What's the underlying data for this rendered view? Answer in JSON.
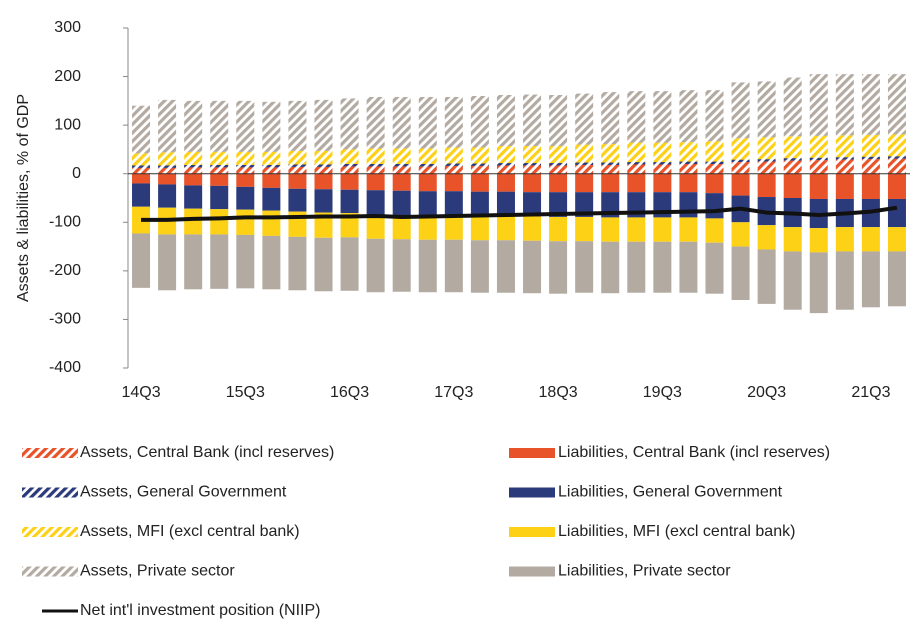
{
  "chart_data": {
    "type": "bar",
    "stacked": true,
    "y_label": "Assets & liabilities, % of GDP",
    "categories": [
      "14Q3",
      null,
      null,
      null,
      "15Q3",
      null,
      null,
      null,
      "16Q3",
      null,
      null,
      null,
      "17Q3",
      null,
      null,
      null,
      "18Q3",
      null,
      null,
      null,
      "19Q3",
      null,
      null,
      null,
      "20Q3",
      null,
      null,
      null,
      "21Q3",
      null
    ],
    "ylim": [
      -400,
      300
    ],
    "yticks": [
      -400,
      -300,
      -200,
      -100,
      0,
      100,
      200,
      300
    ],
    "series": [
      {
        "name": "Assets, Central Bank (incl reserves)",
        "color": "#e8532a",
        "pattern": "hatch",
        "values": [
          12,
          12,
          13,
          13,
          13,
          13,
          14,
          14,
          15,
          15,
          15,
          15,
          16,
          16,
          17,
          17,
          17,
          18,
          18,
          19,
          19,
          20,
          20,
          24,
          25,
          27,
          28,
          29,
          30,
          31
        ]
      },
      {
        "name": "Assets, General Government",
        "color": "#2b3a7a",
        "pattern": "hatch",
        "values": [
          5,
          5,
          5,
          5,
          5,
          5,
          5,
          5,
          5,
          5,
          5,
          5,
          5,
          5,
          5,
          5,
          5,
          5,
          5,
          5,
          5,
          5,
          5,
          5,
          5,
          5,
          5,
          5,
          5,
          5
        ]
      },
      {
        "name": "Assets, MFI (excl central bank)",
        "color": "#fcd116",
        "pattern": "hatch",
        "values": [
          25,
          27,
          27,
          27,
          27,
          27,
          28,
          28,
          30,
          32,
          32,
          32,
          33,
          33,
          35,
          35,
          35,
          37,
          38,
          40,
          40,
          40,
          42,
          44,
          45,
          45,
          45,
          45,
          45,
          45
        ]
      },
      {
        "name": "Assets, Private sector",
        "color": "#b3aaa2",
        "pattern": "hatch",
        "values": [
          98,
          108,
          105,
          105,
          105,
          103,
          103,
          105,
          105,
          106,
          106,
          106,
          104,
          106,
          105,
          106,
          105,
          105,
          107,
          106,
          106,
          107,
          105,
          115,
          115,
          121,
          127,
          126,
          125,
          124
        ]
      },
      {
        "name": "Liabilities, Central Bank (incl reserves)",
        "color": "#e8532a",
        "pattern": "solid",
        "values": [
          -20,
          -22,
          -24,
          -25,
          -27,
          -29,
          -31,
          -32,
          -33,
          -34,
          -35,
          -36,
          -36,
          -37,
          -37,
          -38,
          -38,
          -38,
          -38,
          -38,
          -38,
          -38,
          -40,
          -45,
          -48,
          -50,
          -52,
          -52,
          -52,
          -52
        ]
      },
      {
        "name": "Liabilities, General Government",
        "color": "#2b3a7a",
        "pattern": "solid",
        "values": [
          -48,
          -48,
          -48,
          -48,
          -47,
          -47,
          -47,
          -48,
          -48,
          -50,
          -50,
          -50,
          -50,
          -50,
          -50,
          -50,
          -51,
          -51,
          -52,
          -52,
          -52,
          -52,
          -52,
          -55,
          -58,
          -60,
          -60,
          -58,
          -58,
          -58
        ]
      },
      {
        "name": "Liabilities, MFI (excl central bank)",
        "color": "#fcd116",
        "pattern": "solid",
        "values": [
          -55,
          -55,
          -53,
          -52,
          -52,
          -52,
          -52,
          -52,
          -50,
          -50,
          -50,
          -50,
          -50,
          -50,
          -50,
          -50,
          -50,
          -50,
          -50,
          -50,
          -50,
          -50,
          -50,
          -50,
          -50,
          -50,
          -50,
          -50,
          -50,
          -50
        ]
      },
      {
        "name": "Liabilities, Private sector",
        "color": "#b3aaa2",
        "pattern": "solid",
        "values": [
          -112,
          -115,
          -113,
          -112,
          -110,
          -110,
          -110,
          -110,
          -110,
          -110,
          -108,
          -108,
          -108,
          -108,
          -108,
          -108,
          -108,
          -106,
          -106,
          -105,
          -105,
          -105,
          -105,
          -110,
          -112,
          -120,
          -125,
          -120,
          -115,
          -113
        ]
      },
      {
        "name": "Net int'l investment position (NIIP)",
        "color": "#111111",
        "type": "line",
        "values": [
          -95,
          -95,
          -93,
          -92,
          -90,
          -90,
          -89,
          -88,
          -88,
          -87,
          -89,
          -88,
          -87,
          -86,
          -85,
          -84,
          -83,
          -82,
          -81,
          -80,
          -79,
          -78,
          -77,
          -72,
          -80,
          -82,
          -85,
          -82,
          -78,
          -70
        ]
      }
    ]
  }
}
